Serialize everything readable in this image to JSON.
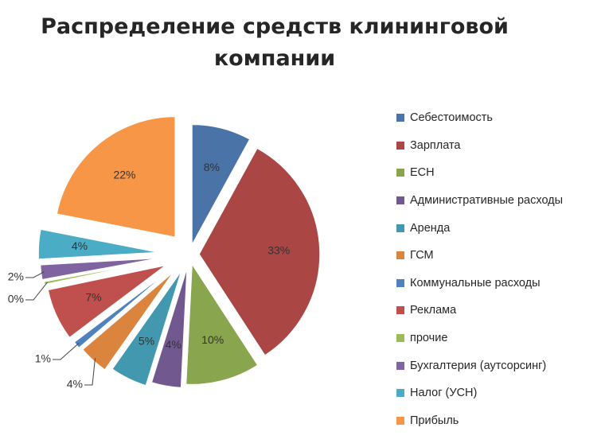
{
  "chart_data": {
    "type": "pie",
    "title_lines": [
      "Распределение средств клининговой",
      "компании"
    ],
    "slices": [
      {
        "name": "Себестоимость",
        "value": 8,
        "label": "8%",
        "color": "#4A73A8"
      },
      {
        "name": "Зарплата",
        "value": 33,
        "label": "33%",
        "color": "#AA4643"
      },
      {
        "name": "ЕСН",
        "value": 10,
        "label": "10%",
        "color": "#89A54E"
      },
      {
        "name": "Административные расходы",
        "value": 4,
        "label": "4%",
        "color": "#71588F"
      },
      {
        "name": "Аренда",
        "value": 5,
        "label": "5%",
        "color": "#4198AF"
      },
      {
        "name": "ГСМ",
        "value": 4,
        "label": "4%",
        "color": "#DB843D"
      },
      {
        "name": "Коммунальные расходы",
        "value": 1,
        "label": "1%",
        "color": "#4F81BD"
      },
      {
        "name": "Реклама",
        "value": 7,
        "label": "7%",
        "color": "#C0504D"
      },
      {
        "name": "прочие",
        "value": 0.4,
        "label": "0%",
        "color": "#9BBB59"
      },
      {
        "name": "Бухгалтерия (аутсорсинг)",
        "value": 2,
        "label": "2%",
        "color": "#8064A2"
      },
      {
        "name": "Налог (УСН)",
        "value": 4,
        "label": "4%",
        "color": "#4BACC6"
      },
      {
        "name": "Прибыль",
        "value": 22,
        "label": "22%",
        "color": "#F79646"
      }
    ],
    "legend_position": "right"
  }
}
